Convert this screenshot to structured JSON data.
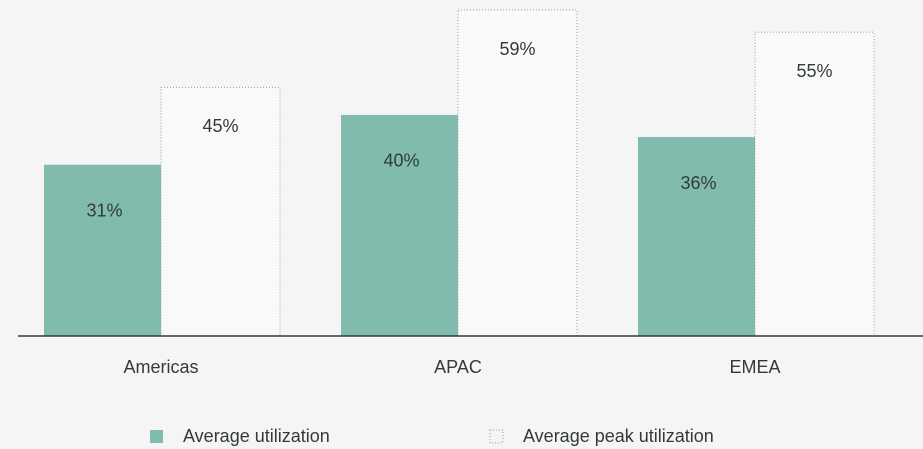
{
  "chart_data": {
    "type": "bar",
    "categories": [
      "Americas",
      "APAC",
      "EMEA"
    ],
    "series": [
      {
        "name": "Average utilization",
        "color": "#80bbad",
        "values": [
          31,
          40,
          36
        ],
        "value_labels": [
          "31%",
          "40%",
          "36%"
        ]
      },
      {
        "name": "Average peak utilization",
        "color": "#f8f9f8",
        "values": [
          45,
          59,
          55
        ],
        "value_labels": [
          "45%",
          "59%",
          "55%"
        ]
      }
    ]
  }
}
